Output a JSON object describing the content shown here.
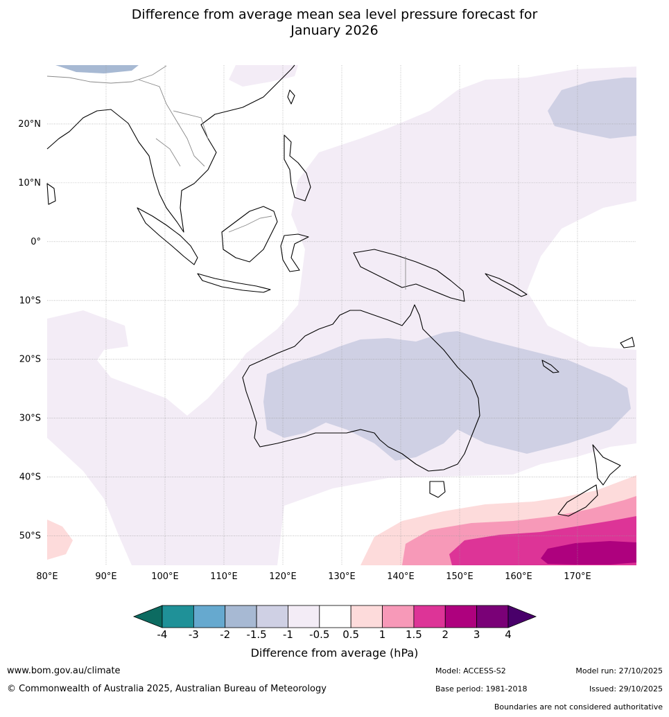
{
  "title": {
    "line1": "Difference from average mean sea level pressure forecast for",
    "line2": "January 2026"
  },
  "map": {
    "lat_labels": [
      "20°N",
      "10°N",
      "0°",
      "10°S",
      "20°S",
      "30°S",
      "40°S",
      "50°S"
    ],
    "lon_labels": [
      "80°E",
      "90°E",
      "100°E",
      "110°E",
      "120°E",
      "130°E",
      "140°E",
      "150°E",
      "160°E",
      "170°E"
    ],
    "lon_range": [
      80,
      180
    ],
    "lat_range": [
      -55,
      30
    ]
  },
  "colorbar": {
    "title": "Difference from average (hPa)",
    "tick_labels": [
      "-4",
      "-3",
      "-2",
      "-1.5",
      "-1",
      "-0.5",
      "0.5",
      "1",
      "1.5",
      "2",
      "3",
      "4"
    ],
    "colors": [
      "#0c6b61",
      "#1f9198",
      "#66a9cf",
      "#a7b9d3",
      "#cfd0e4",
      "#f3ecf6",
      "#ffffff",
      "#fddbdb",
      "#f799b8",
      "#dd3497",
      "#ae017e",
      "#7a0177",
      "#49006a"
    ]
  },
  "footer": {
    "website": "www.bom.gov.au/climate",
    "copyright": "© Commonwealth of Australia 2025, Australian Bureau of Meteorology",
    "model": "Model: ACCESS-S2",
    "base_period": "Base period: 1981-2018",
    "model_run": "Model run: 27/10/2025",
    "issued": "Issued: 29/10/2025",
    "disclaimer": "Boundaries are not considered authoritative"
  }
}
